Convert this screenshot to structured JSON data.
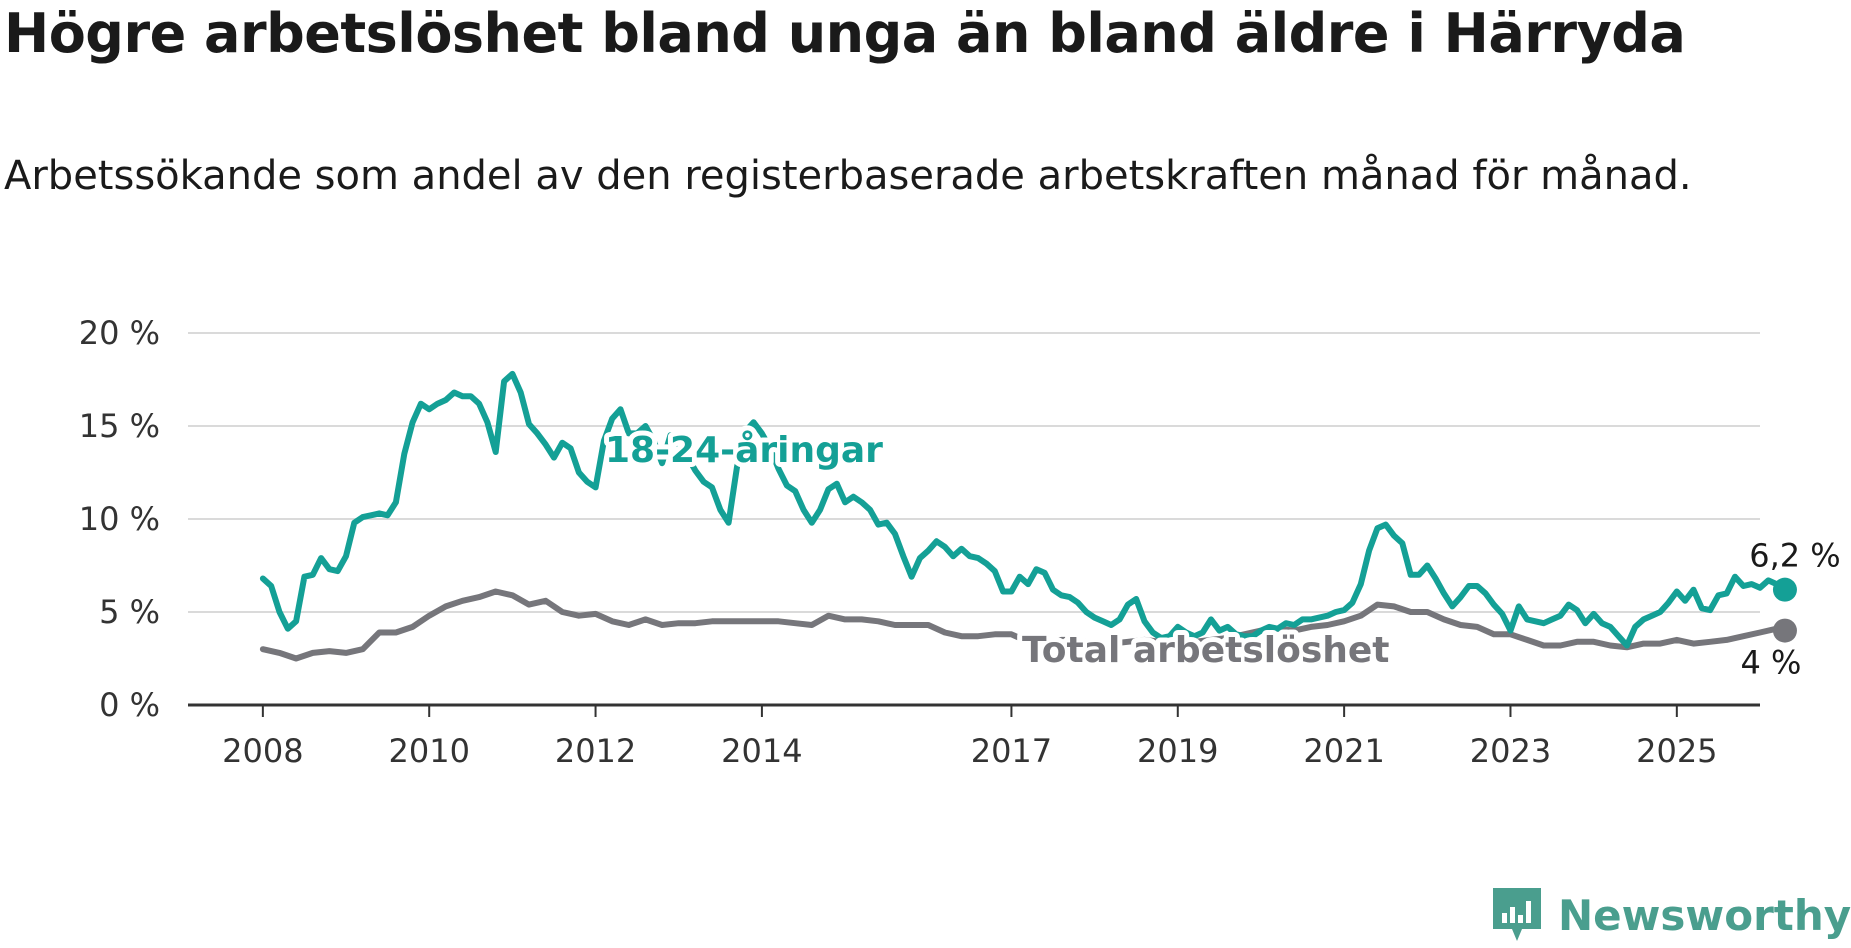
{
  "title": "Högre arbetslöshet bland unga än bland äldre i Härryda",
  "subtitle": "Arbetssökande som andel av den registerbaserade arbetskraften månad för månad.",
  "brand": "Newsworthy",
  "colors": {
    "youth": "#14a096",
    "total": "#76767b",
    "grid": "#dadada",
    "axis": "#333333",
    "brand": "#4a9e8e"
  },
  "chart_data": {
    "type": "line",
    "title": "Högre arbetslöshet bland unga än bland äldre i Härryda",
    "ylim": [
      0,
      20
    ],
    "y_ticks": [
      0,
      5,
      10,
      15,
      20
    ],
    "y_tick_labels": [
      "0 %",
      "5 %",
      "10 %",
      "15 %",
      "20 %"
    ],
    "x_ticks": [
      2008,
      2010,
      2012,
      2014,
      2017,
      2019,
      2021,
      2023,
      2025
    ],
    "x_tick_labels": [
      "2008",
      "2010",
      "2012",
      "2014",
      "2017",
      "2019",
      "2021",
      "2023",
      "2025"
    ],
    "xlim": [
      2007.1,
      2026.0
    ],
    "grid": "horizontal",
    "series": [
      {
        "name": "18-24-åringar",
        "end_label": "6,2 %",
        "points": [
          [
            2008.0,
            6.8
          ],
          [
            2008.1,
            6.4
          ],
          [
            2008.2,
            5.0
          ],
          [
            2008.3,
            4.1
          ],
          [
            2008.4,
            4.5
          ],
          [
            2008.5,
            6.9
          ],
          [
            2008.6,
            7.0
          ],
          [
            2008.7,
            7.9
          ],
          [
            2008.8,
            7.3
          ],
          [
            2008.9,
            7.2
          ],
          [
            2009.0,
            8.0
          ],
          [
            2009.1,
            9.8
          ],
          [
            2009.2,
            10.1
          ],
          [
            2009.3,
            10.2
          ],
          [
            2009.4,
            10.3
          ],
          [
            2009.5,
            10.2
          ],
          [
            2009.6,
            10.9
          ],
          [
            2009.7,
            13.5
          ],
          [
            2009.8,
            15.2
          ],
          [
            2009.9,
            16.2
          ],
          [
            2010.0,
            15.9
          ],
          [
            2010.1,
            16.2
          ],
          [
            2010.2,
            16.4
          ],
          [
            2010.3,
            16.8
          ],
          [
            2010.4,
            16.6
          ],
          [
            2010.5,
            16.6
          ],
          [
            2010.6,
            16.2
          ],
          [
            2010.7,
            15.2
          ],
          [
            2010.8,
            13.6
          ],
          [
            2010.9,
            17.4
          ],
          [
            2011.0,
            17.8
          ],
          [
            2011.1,
            16.8
          ],
          [
            2011.2,
            15.1
          ],
          [
            2011.3,
            14.6
          ],
          [
            2011.4,
            14.0
          ],
          [
            2011.5,
            13.3
          ],
          [
            2011.6,
            14.1
          ],
          [
            2011.7,
            13.8
          ],
          [
            2011.8,
            12.5
          ],
          [
            2011.9,
            12.0
          ],
          [
            2012.0,
            11.7
          ],
          [
            2012.1,
            14.2
          ],
          [
            2012.2,
            15.4
          ],
          [
            2012.3,
            15.9
          ],
          [
            2012.4,
            14.6
          ],
          [
            2012.5,
            14.6
          ],
          [
            2012.6,
            15.0
          ],
          [
            2012.7,
            14.2
          ],
          [
            2012.8,
            13.0
          ],
          [
            2012.9,
            14.5
          ],
          [
            2013.0,
            14.0
          ],
          [
            2013.1,
            13.4
          ],
          [
            2013.2,
            12.6
          ],
          [
            2013.3,
            12.0
          ],
          [
            2013.4,
            11.7
          ],
          [
            2013.5,
            10.5
          ],
          [
            2013.6,
            9.8
          ],
          [
            2013.7,
            12.8
          ],
          [
            2013.8,
            14.7
          ],
          [
            2013.9,
            15.2
          ],
          [
            2014.0,
            14.6
          ],
          [
            2014.1,
            13.8
          ],
          [
            2014.2,
            12.7
          ],
          [
            2014.3,
            11.8
          ],
          [
            2014.4,
            11.5
          ],
          [
            2014.5,
            10.5
          ],
          [
            2014.6,
            9.8
          ],
          [
            2014.7,
            10.5
          ],
          [
            2014.8,
            11.6
          ],
          [
            2014.9,
            11.9
          ],
          [
            2015.0,
            10.9
          ],
          [
            2015.1,
            11.2
          ],
          [
            2015.2,
            10.9
          ],
          [
            2015.3,
            10.5
          ],
          [
            2015.4,
            9.7
          ],
          [
            2015.5,
            9.8
          ],
          [
            2015.6,
            9.2
          ],
          [
            2015.7,
            8.0
          ],
          [
            2015.8,
            6.9
          ],
          [
            2015.9,
            7.9
          ],
          [
            2016.0,
            8.3
          ],
          [
            2016.1,
            8.8
          ],
          [
            2016.2,
            8.5
          ],
          [
            2016.3,
            8.0
          ],
          [
            2016.4,
            8.4
          ],
          [
            2016.5,
            8.0
          ],
          [
            2016.6,
            7.9
          ],
          [
            2016.7,
            7.6
          ],
          [
            2016.8,
            7.2
          ],
          [
            2016.9,
            6.1
          ],
          [
            2017.0,
            6.1
          ],
          [
            2017.1,
            6.9
          ],
          [
            2017.2,
            6.5
          ],
          [
            2017.3,
            7.3
          ],
          [
            2017.4,
            7.1
          ],
          [
            2017.5,
            6.2
          ],
          [
            2017.6,
            5.9
          ],
          [
            2017.7,
            5.8
          ],
          [
            2017.8,
            5.5
          ],
          [
            2017.9,
            5.0
          ],
          [
            2018.0,
            4.7
          ],
          [
            2018.1,
            4.5
          ],
          [
            2018.2,
            4.3
          ],
          [
            2018.3,
            4.6
          ],
          [
            2018.4,
            5.4
          ],
          [
            2018.5,
            5.7
          ],
          [
            2018.6,
            4.5
          ],
          [
            2018.7,
            3.9
          ],
          [
            2018.8,
            3.6
          ],
          [
            2018.9,
            3.7
          ],
          [
            2019.0,
            4.2
          ],
          [
            2019.1,
            3.9
          ],
          [
            2019.2,
            3.7
          ],
          [
            2019.3,
            3.9
          ],
          [
            2019.4,
            4.6
          ],
          [
            2019.5,
            4.0
          ],
          [
            2019.6,
            4.2
          ],
          [
            2019.7,
            3.8
          ],
          [
            2019.8,
            3.7
          ],
          [
            2019.9,
            3.7
          ],
          [
            2020.0,
            4.0
          ],
          [
            2020.1,
            4.2
          ],
          [
            2020.2,
            4.1
          ],
          [
            2020.3,
            4.4
          ],
          [
            2020.4,
            4.3
          ],
          [
            2020.5,
            4.6
          ],
          [
            2020.6,
            4.6
          ],
          [
            2020.7,
            4.7
          ],
          [
            2020.8,
            4.8
          ],
          [
            2020.9,
            5.0
          ],
          [
            2021.0,
            5.1
          ],
          [
            2021.1,
            5.5
          ],
          [
            2021.2,
            6.5
          ],
          [
            2021.3,
            8.3
          ],
          [
            2021.4,
            9.5
          ],
          [
            2021.5,
            9.7
          ],
          [
            2021.6,
            9.1
          ],
          [
            2021.7,
            8.7
          ],
          [
            2021.8,
            7.0
          ],
          [
            2021.9,
            7.0
          ],
          [
            2022.0,
            7.5
          ],
          [
            2022.1,
            6.8
          ],
          [
            2022.2,
            6.0
          ],
          [
            2022.3,
            5.3
          ],
          [
            2022.4,
            5.8
          ],
          [
            2022.5,
            6.4
          ],
          [
            2022.6,
            6.4
          ],
          [
            2022.7,
            6.0
          ],
          [
            2022.8,
            5.4
          ],
          [
            2022.9,
            4.9
          ],
          [
            2023.0,
            4.0
          ],
          [
            2023.1,
            5.3
          ],
          [
            2023.2,
            4.6
          ],
          [
            2023.3,
            4.5
          ],
          [
            2023.4,
            4.4
          ],
          [
            2023.5,
            4.6
          ],
          [
            2023.6,
            4.8
          ],
          [
            2023.7,
            5.4
          ],
          [
            2023.8,
            5.1
          ],
          [
            2023.9,
            4.4
          ],
          [
            2024.0,
            4.9
          ],
          [
            2024.1,
            4.4
          ],
          [
            2024.2,
            4.2
          ],
          [
            2024.3,
            3.7
          ],
          [
            2024.4,
            3.2
          ],
          [
            2024.5,
            4.2
          ],
          [
            2024.6,
            4.6
          ],
          [
            2024.7,
            4.8
          ],
          [
            2024.8,
            5.0
          ],
          [
            2024.9,
            5.5
          ],
          [
            2025.0,
            6.1
          ],
          [
            2025.1,
            5.6
          ],
          [
            2025.2,
            6.2
          ],
          [
            2025.3,
            5.2
          ],
          [
            2025.4,
            5.1
          ],
          [
            2025.5,
            5.9
          ],
          [
            2025.6,
            6.0
          ],
          [
            2025.7,
            6.9
          ],
          [
            2025.8,
            6.4
          ],
          [
            2025.9,
            6.5
          ],
          [
            2026.0,
            6.3
          ],
          [
            2026.1,
            6.7
          ],
          [
            2026.2,
            6.5
          ],
          [
            2026.3,
            6.2
          ]
        ]
      },
      {
        "name": "Total arbetslöshet",
        "end_label": "4 %",
        "points": [
          [
            2008.0,
            3.0
          ],
          [
            2008.2,
            2.8
          ],
          [
            2008.4,
            2.5
          ],
          [
            2008.6,
            2.8
          ],
          [
            2008.8,
            2.9
          ],
          [
            2009.0,
            2.8
          ],
          [
            2009.2,
            3.0
          ],
          [
            2009.4,
            3.9
          ],
          [
            2009.6,
            3.9
          ],
          [
            2009.8,
            4.2
          ],
          [
            2010.0,
            4.8
          ],
          [
            2010.2,
            5.3
          ],
          [
            2010.4,
            5.6
          ],
          [
            2010.6,
            5.8
          ],
          [
            2010.8,
            6.1
          ],
          [
            2011.0,
            5.9
          ],
          [
            2011.2,
            5.4
          ],
          [
            2011.4,
            5.6
          ],
          [
            2011.6,
            5.0
          ],
          [
            2011.8,
            4.8
          ],
          [
            2012.0,
            4.9
          ],
          [
            2012.2,
            4.5
          ],
          [
            2012.4,
            4.3
          ],
          [
            2012.6,
            4.6
          ],
          [
            2012.8,
            4.3
          ],
          [
            2013.0,
            4.4
          ],
          [
            2013.2,
            4.4
          ],
          [
            2013.4,
            4.5
          ],
          [
            2013.6,
            4.5
          ],
          [
            2013.8,
            4.5
          ],
          [
            2014.0,
            4.5
          ],
          [
            2014.2,
            4.5
          ],
          [
            2014.4,
            4.4
          ],
          [
            2014.6,
            4.3
          ],
          [
            2014.8,
            4.8
          ],
          [
            2015.0,
            4.6
          ],
          [
            2015.2,
            4.6
          ],
          [
            2015.4,
            4.5
          ],
          [
            2015.6,
            4.3
          ],
          [
            2015.8,
            4.3
          ],
          [
            2016.0,
            4.3
          ],
          [
            2016.2,
            3.9
          ],
          [
            2016.4,
            3.7
          ],
          [
            2016.6,
            3.7
          ],
          [
            2016.8,
            3.8
          ],
          [
            2017.0,
            3.8
          ],
          [
            2017.2,
            3.4
          ],
          [
            2017.4,
            3.3
          ],
          [
            2017.6,
            3.5
          ],
          [
            2017.8,
            3.5
          ],
          [
            2018.0,
            3.3
          ],
          [
            2018.2,
            3.3
          ],
          [
            2018.4,
            3.4
          ],
          [
            2018.6,
            3.5
          ],
          [
            2018.8,
            3.4
          ],
          [
            2019.0,
            3.3
          ],
          [
            2019.2,
            3.4
          ],
          [
            2019.4,
            3.5
          ],
          [
            2019.6,
            3.6
          ],
          [
            2019.8,
            3.8
          ],
          [
            2020.0,
            4.0
          ],
          [
            2020.2,
            4.1
          ],
          [
            2020.4,
            4.0
          ],
          [
            2020.6,
            4.2
          ],
          [
            2020.8,
            4.3
          ],
          [
            2021.0,
            4.5
          ],
          [
            2021.2,
            4.8
          ],
          [
            2021.4,
            5.4
          ],
          [
            2021.6,
            5.3
          ],
          [
            2021.8,
            5.0
          ],
          [
            2022.0,
            5.0
          ],
          [
            2022.2,
            4.6
          ],
          [
            2022.4,
            4.3
          ],
          [
            2022.6,
            4.2
          ],
          [
            2022.8,
            3.8
          ],
          [
            2023.0,
            3.8
          ],
          [
            2023.2,
            3.5
          ],
          [
            2023.4,
            3.2
          ],
          [
            2023.6,
            3.2
          ],
          [
            2023.8,
            3.4
          ],
          [
            2024.0,
            3.4
          ],
          [
            2024.2,
            3.2
          ],
          [
            2024.4,
            3.1
          ],
          [
            2024.6,
            3.3
          ],
          [
            2024.8,
            3.3
          ],
          [
            2025.0,
            3.5
          ],
          [
            2025.2,
            3.3
          ],
          [
            2025.4,
            3.4
          ],
          [
            2025.6,
            3.5
          ],
          [
            2025.8,
            3.7
          ],
          [
            2026.0,
            3.9
          ],
          [
            2026.2,
            4.1
          ],
          [
            2026.3,
            4.0
          ]
        ]
      }
    ]
  }
}
